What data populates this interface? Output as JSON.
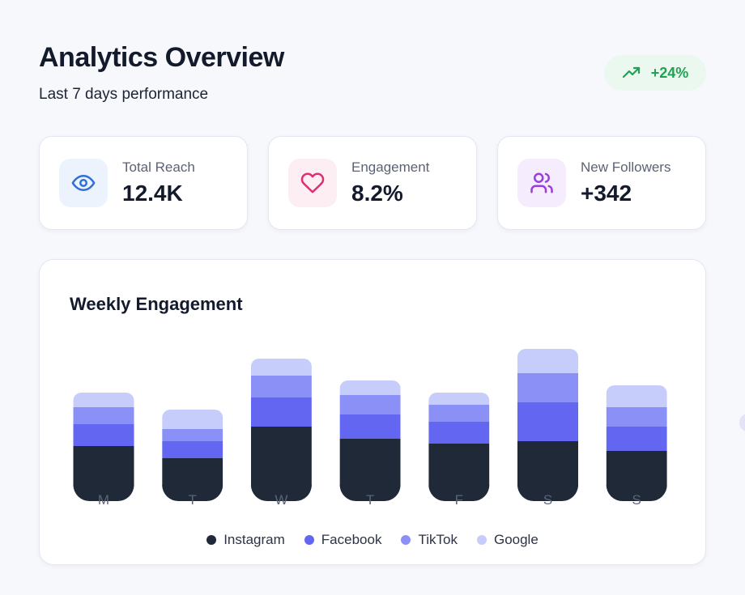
{
  "header": {
    "title": "Analytics Overview",
    "subtitle": "Last 7 days performance",
    "trend": {
      "value": "+24%",
      "icon": "trending-up-icon",
      "color": "#21a154"
    }
  },
  "stats": [
    {
      "label": "Total Reach",
      "value": "12.4K",
      "icon": "eye-icon",
      "icon_color": "#2f6fdb",
      "bg": "#edf3fd"
    },
    {
      "label": "Engagement",
      "value": "8.2%",
      "icon": "heart-icon",
      "icon_color": "#dc2f72",
      "bg": "#fdeef3"
    },
    {
      "label": "New Followers",
      "value": "+342",
      "icon": "users-icon",
      "icon_color": "#9a3ce0",
      "bg": "#f5ecfd"
    }
  ],
  "chart_data": {
    "type": "bar",
    "stacked": true,
    "title": "Weekly Engagement",
    "categories": [
      "M",
      "T",
      "W",
      "T",
      "F",
      "S",
      "S"
    ],
    "series": [
      {
        "name": "Instagram",
        "color": "#1f2937",
        "values": [
          48,
          33,
          72,
          57,
          51,
          54,
          42
        ]
      },
      {
        "name": "Facebook",
        "color": "#6366f1",
        "values": [
          27,
          21,
          36,
          30,
          27,
          48,
          30
        ]
      },
      {
        "name": "TikTok",
        "color": "#8b90f7",
        "values": [
          21,
          15,
          27,
          24,
          21,
          36,
          24
        ]
      },
      {
        "name": "Google",
        "color": "#c7cdfa",
        "values": [
          18,
          24,
          21,
          18,
          15,
          30,
          27
        ]
      }
    ],
    "ylim": [
      0,
      166
    ],
    "legend_position": "bottom",
    "grid": false
  }
}
